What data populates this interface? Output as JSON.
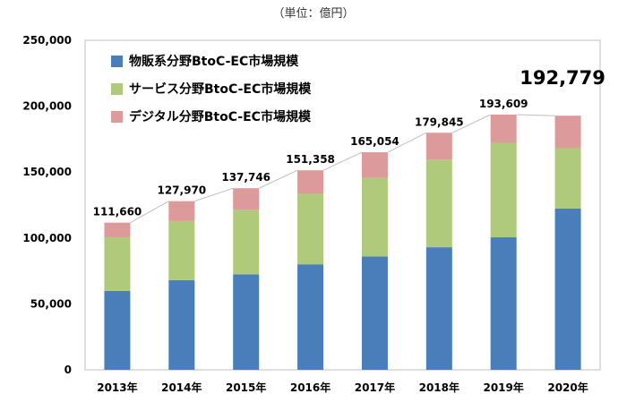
{
  "unit_label": "（単位：億円）",
  "colors": {
    "physical": "#4a7ebb",
    "service": "#afca7a",
    "digital": "#dc9a9a"
  },
  "chart_data": {
    "type": "bar",
    "stacked": true,
    "categories": [
      "2013年",
      "2014年",
      "2015年",
      "2016年",
      "2017年",
      "2018年",
      "2019年",
      "2020年"
    ],
    "series": [
      {
        "name": "物販系分野BtoC-EC市場規模",
        "values": [
          59931,
          68043,
          72398,
          80043,
          86008,
          92992,
          100515,
          122333
        ]
      },
      {
        "name": "サービス分野BtoC-EC市場規模",
        "values": [
          40643,
          44816,
          49014,
          53532,
          59568,
          66471,
          71672,
          45832
        ]
      },
      {
        "name": "デジタル分野BtoC-EC市場規模",
        "values": [
          11086,
          15111,
          16334,
          17783,
          19478,
          20382,
          21422,
          24614
        ]
      }
    ],
    "totals": [
      "111,660",
      "127,970",
      "137,746",
      "151,358",
      "165,054",
      "179,845",
      "193,609",
      "192,779"
    ],
    "yticks": [
      "0",
      "50,000",
      "100,000",
      "150,000",
      "200,000",
      "250,000"
    ],
    "ylim": [
      0,
      250000
    ],
    "legend_position": "top-left",
    "grid": false
  }
}
